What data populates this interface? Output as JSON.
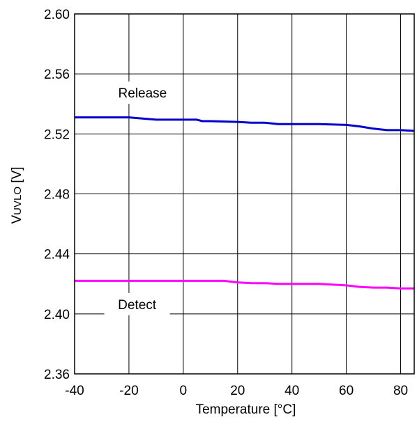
{
  "chart_data": {
    "type": "line",
    "xlabel": "Temperature [°C]",
    "ylabel_main": "V",
    "ylabel_sub": "UVLO",
    "ylabel_unit": " [V]",
    "xlim": [
      -40,
      85
    ],
    "ylim": [
      2.36,
      2.6
    ],
    "xticks": [
      -40,
      -20,
      0,
      20,
      40,
      60,
      80
    ],
    "xtick_labels": [
      "-40",
      "-20",
      "0",
      "20",
      "40",
      "60",
      "80"
    ],
    "yticks": [
      2.36,
      2.4,
      2.44,
      2.48,
      2.52,
      2.56,
      2.6
    ],
    "ytick_labels": [
      "2.36",
      "2.40",
      "2.44",
      "2.48",
      "2.52",
      "2.56",
      "2.60"
    ],
    "x_grid": [
      -40,
      -20,
      0,
      20,
      40,
      60,
      80
    ],
    "grid": true,
    "series": [
      {
        "name": "Release",
        "color": "#0000cc",
        "x": [
          -40,
          -30,
          -20,
          -10,
          0,
          5,
          7,
          10,
          20,
          25,
          30,
          35,
          40,
          50,
          60,
          65,
          70,
          75,
          80,
          85
        ],
        "y": [
          2.531,
          2.531,
          2.531,
          2.5295,
          2.5295,
          2.5295,
          2.5285,
          2.5285,
          2.528,
          2.5275,
          2.5275,
          2.5265,
          2.5265,
          2.5265,
          2.526,
          2.525,
          2.5235,
          2.5225,
          2.5225,
          2.522
        ]
      },
      {
        "name": "Detect",
        "color": "#ff00ff",
        "x": [
          -40,
          -20,
          0,
          10,
          15,
          20,
          25,
          30,
          35,
          40,
          50,
          60,
          65,
          70,
          75,
          80,
          85
        ],
        "y": [
          2.422,
          2.422,
          2.422,
          2.422,
          2.422,
          2.421,
          2.4205,
          2.4205,
          2.42,
          2.42,
          2.42,
          2.419,
          2.418,
          2.4175,
          2.4175,
          2.417,
          2.417
        ]
      }
    ],
    "annotations": [
      {
        "text": "Release",
        "x": -15,
        "y": 2.5475
      },
      {
        "text": "Detect",
        "x": -17,
        "y": 2.4065
      }
    ]
  }
}
